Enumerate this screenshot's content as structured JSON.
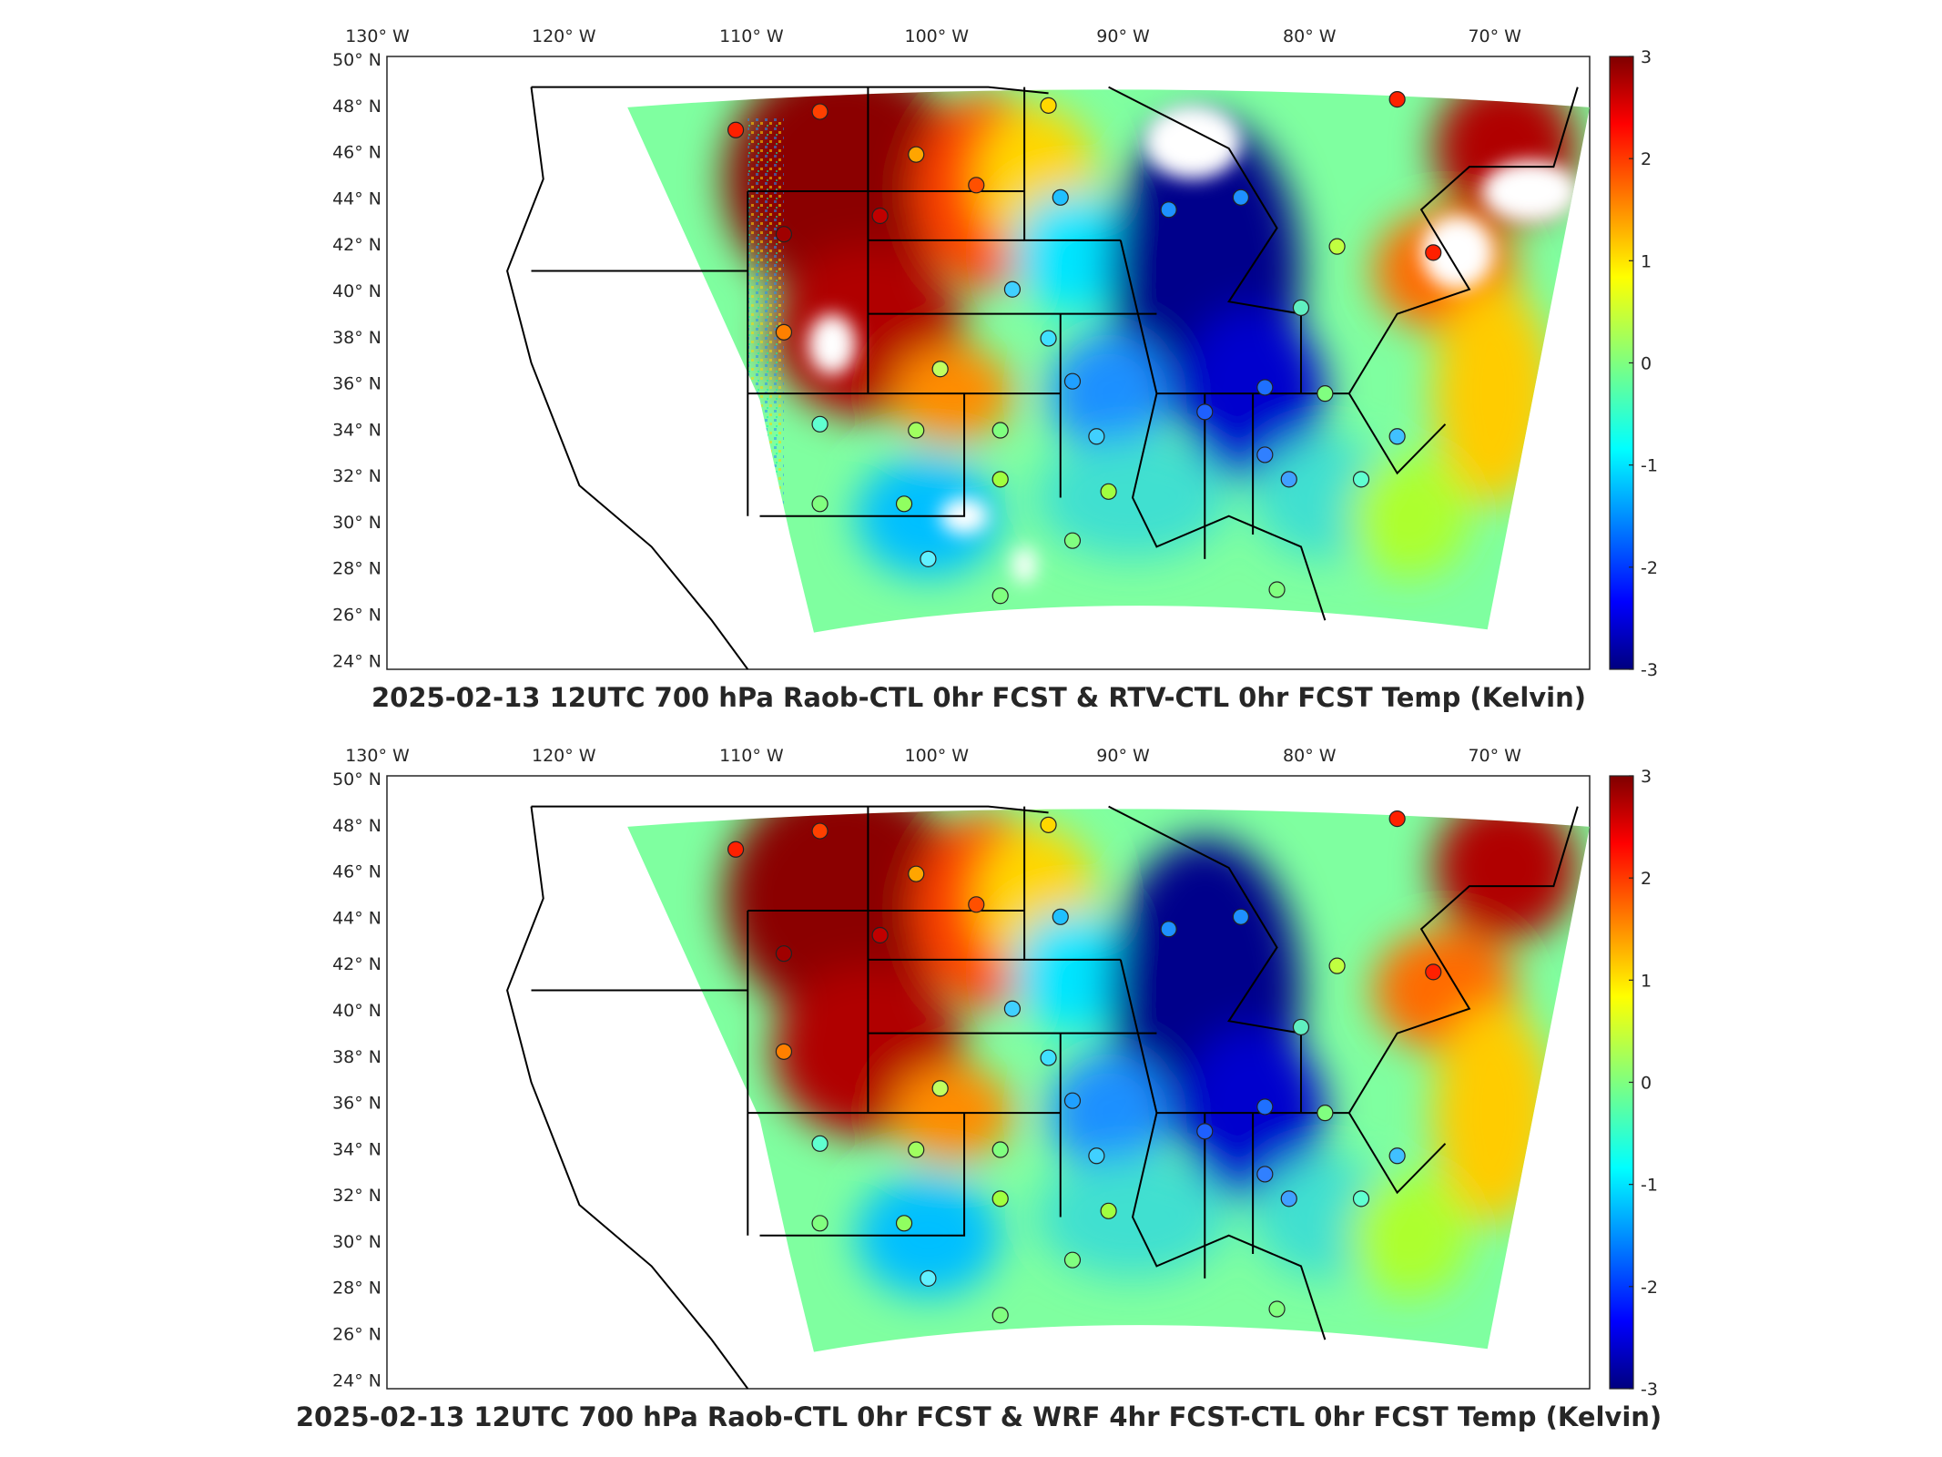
{
  "figure": {
    "panels": [
      {
        "id": "top",
        "title": "2025-02-13 12UTC 700 hPa Raob-CTL 0hr FCST & RTV-CTL 0hr FCST Temp (Kelvin)",
        "lon_ticks": [
          "130 W",
          "120 W",
          "110 W",
          "100 W",
          "90 W",
          "80 W",
          "70 W"
        ],
        "lat_ticks": [
          "50 N",
          "48 N",
          "46 N",
          "44 N",
          "42 N",
          "40 N",
          "38 N",
          "36 N",
          "34 N",
          "32 N",
          "30 N",
          "28 N",
          "26 N",
          "24 N"
        ],
        "colorbar_ticks": [
          "3",
          "2",
          "1",
          "0",
          "-1",
          "-2",
          "-3"
        ]
      },
      {
        "id": "bottom",
        "title": "2025-02-13 12UTC 700 hPa Raob-CTL 0hr FCST & WRF 4hr FCST-CTL 0hr FCST Temp (Kelvin)",
        "lon_ticks": [
          "130 W",
          "120 W",
          "110 W",
          "100 W",
          "90 W",
          "80 W",
          "70 W"
        ],
        "lat_ticks": [
          "50 N",
          "48 N",
          "46 N",
          "44 N",
          "42 N",
          "40 N",
          "38 N",
          "36 N",
          "34 N",
          "32 N",
          "30 N",
          "28 N",
          "26 N",
          "24 N"
        ],
        "colorbar_ticks": [
          "3",
          "2",
          "1",
          "0",
          "-1",
          "-2",
          "-3"
        ]
      }
    ],
    "colormap": "jet",
    "colorbar_range": [
      -3,
      3
    ],
    "colors": {
      "axis": "#262626",
      "border": "#000000",
      "missing": "#ffffff"
    },
    "field_type": "temperature difference (K)"
  }
}
